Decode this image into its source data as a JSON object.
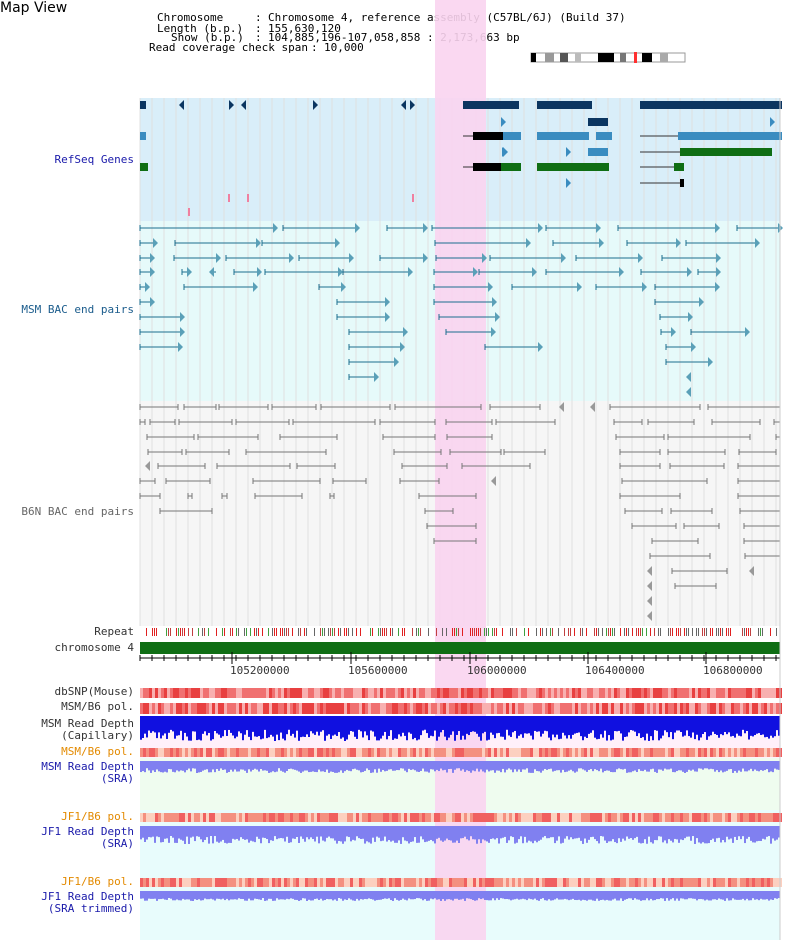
{
  "title": "Map View",
  "info": {
    "chromosome_key": "Chromosome",
    "chromosome_val": "Chromosome 4, reference assembly (C57BL/6J) (Build 37)",
    "length_key": "Length (b.p.)",
    "length_val": "155,630,120",
    "show_key": "Show (b.p.)",
    "show_val": "104,885,196-107,058,858 : 2,173,663 bp",
    "coverage_key": "Read coverage check span",
    "coverage_val": "10,000"
  },
  "tracks": {
    "refseq": "RefSeq Genes",
    "msm_bac": "MSM BAC end pairs",
    "b6n_bac": "B6N BAC end pairs",
    "repeat": "Repeat",
    "chromosome": "chromosome 4",
    "dbsnp": "dbSNP(Mouse)",
    "msm_b6_pol_1": "MSM/B6 pol.",
    "msm_depth_cap_1": "MSM Read Depth",
    "msm_depth_cap_2": "(Capillary)",
    "msm_b6_pol_2": "MSM/B6 pol.",
    "msm_depth_sra_1": "MSM Read Depth",
    "msm_depth_sra_2": "(SRA)",
    "jf1_b6_pol_1": "JF1/B6 pol.",
    "jf1_depth_sra_1": "JF1 Read Depth",
    "jf1_depth_sra_2": "(SRA)",
    "jf1_b6_pol_2": "JF1/B6 pol.",
    "jf1_depth_trim_1": "JF1 Read Depth",
    "jf1_depth_trim_2": "(SRA trimmed)"
  },
  "axis_ticks": [
    "105200000",
    "105600000",
    "106000000",
    "106400000",
    "106800000"
  ],
  "colors": {
    "refseq_bg": "#d9eef9",
    "bac_bg": "#e6fafa",
    "highlight": "#f9d4ef",
    "gene_dark": "#0b3560",
    "gene_mid": "#3a8cc0",
    "gene_green": "#0f6e14",
    "msm_line": "#1c6e8e",
    "b6n_line": "#666666",
    "chromosome_bar": "#0f6e14",
    "depth_blue": "#1010e0",
    "depth_light": "#8080f0",
    "pol_red": "#f07070"
  }
}
